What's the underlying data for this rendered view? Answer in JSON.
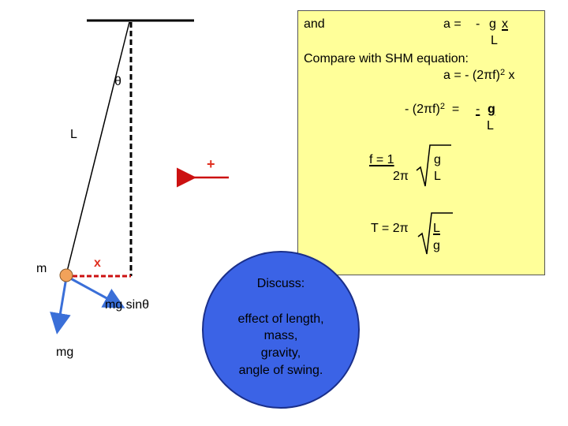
{
  "colors": {
    "box_fill": "#ffff99",
    "circle_fill": "#3b63e6",
    "force_arrow": "#3a6fd8",
    "displacement": "#cc1111",
    "bob": "#f2a25a"
  },
  "labels": {
    "theta": "θ",
    "length": "L",
    "mass": "m",
    "displacement": "x",
    "plus": "+",
    "mg_sin": "mg sinθ",
    "mg": "mg"
  },
  "box": {
    "and": "and",
    "a_eq": "a =",
    "minus": "-",
    "g": "g",
    "x": "x",
    "L": "L",
    "compare": "Compare with SHM equation:",
    "shm_lhs": "a  =  - (2πf)",
    "sq": "2",
    "shm_x": "x",
    "eq2_lhs": "- (2πf)",
    "eq2_sq": "2",
    "eq2_eq": "=",
    "eq2_minus": "-",
    "eq2_g": "g",
    "eq2_L": "L",
    "f_lhs": "f  =  1",
    "f_den": "2π",
    "f_g": "g",
    "f_L": "L",
    "T_lhs": "T =  2π",
    "T_L": "L",
    "T_g": "g"
  },
  "discuss": {
    "title": "Discuss:",
    "lines": [
      "effect of length,",
      "mass,",
      "gravity,",
      "angle of swing."
    ]
  }
}
